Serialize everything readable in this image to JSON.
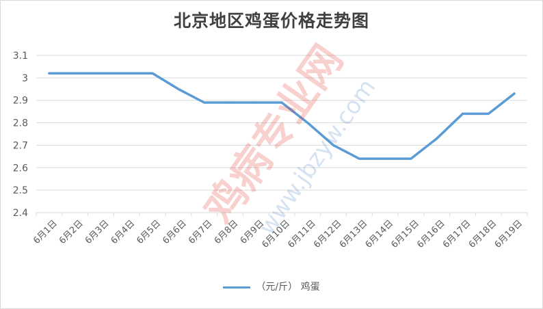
{
  "chart_data": {
    "type": "line",
    "title": "北京地区鸡蛋价格走势图",
    "categories": [
      "6月1日",
      "6月2日",
      "6月3日",
      "6月4日",
      "6月5日",
      "6月6日",
      "6月7日",
      "6月8日",
      "6月9日",
      "6月10日",
      "6月11日",
      "6月12日",
      "6月13日",
      "6月14日",
      "6月15日",
      "6月16日",
      "6月17日",
      "6月18日",
      "6月19日"
    ],
    "series": [
      {
        "name": "（元/斤） 鸡蛋",
        "values": [
          3.02,
          3.02,
          3.02,
          3.02,
          3.02,
          2.95,
          2.89,
          2.89,
          2.89,
          2.89,
          2.8,
          2.7,
          2.64,
          2.64,
          2.64,
          2.73,
          2.84,
          2.84,
          2.93
        ]
      }
    ],
    "y_ticks": [
      "2.4",
      "2.5",
      "2.6",
      "2.7",
      "2.8",
      "2.9",
      "3",
      "3.1"
    ],
    "ylim": [
      2.4,
      3.1
    ],
    "grid": true,
    "legend_position": "bottom",
    "line_color": "#5b9bd5"
  },
  "watermark": {
    "text_main": "鸡病专业网",
    "text_url": "www.jbzyw.com"
  }
}
